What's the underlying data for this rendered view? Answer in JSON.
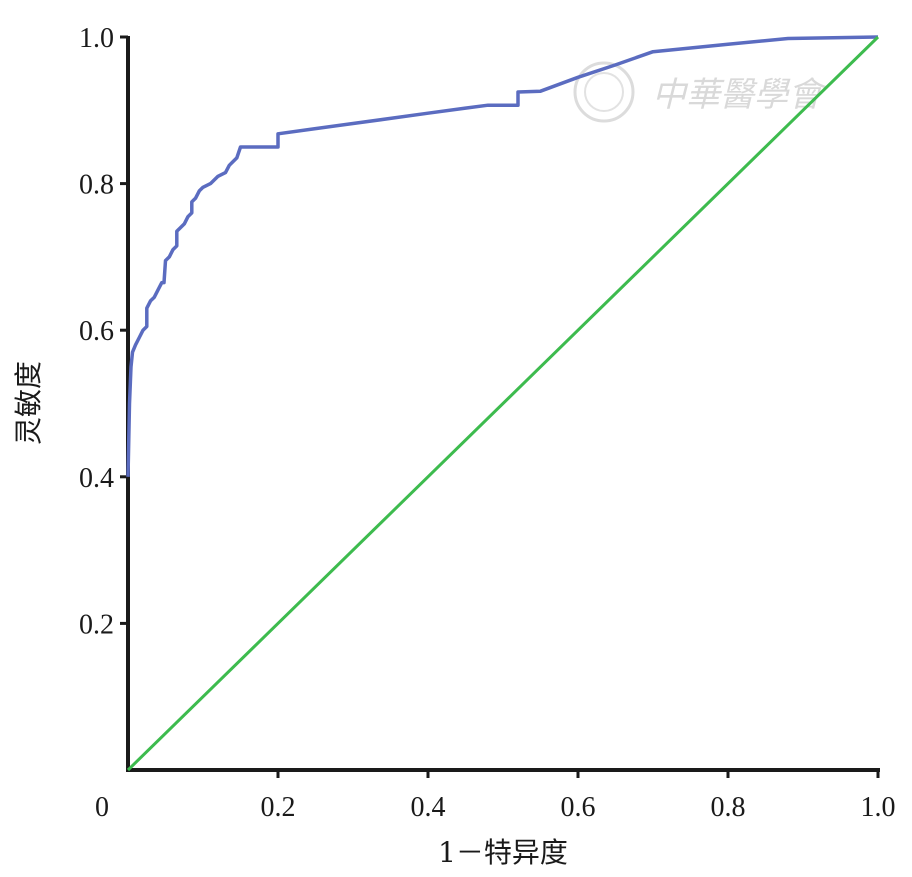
{
  "chart_data": {
    "type": "line",
    "title": "",
    "xlabel": "1－特异度",
    "ylabel": "灵敏度",
    "xlim": [
      0,
      1
    ],
    "ylim": [
      0,
      1
    ],
    "x_ticks": [
      0,
      0.2,
      0.4,
      0.6,
      0.8,
      1.0
    ],
    "x_tick_labels": [
      "0",
      "0.2",
      "0.4",
      "0.6",
      "0.8",
      "1.0"
    ],
    "y_ticks": [
      0.2,
      0.4,
      0.6,
      0.8,
      1.0
    ],
    "y_tick_labels": [
      "0.2",
      "0.4",
      "0.6",
      "0.8",
      "1.0"
    ],
    "grid": false,
    "legend": "none",
    "series": [
      {
        "color": "#5b6cc0",
        "points": [
          [
            0,
            0.4
          ],
          [
            0.002,
            0.5
          ],
          [
            0.004,
            0.55
          ],
          [
            0.006,
            0.57
          ],
          [
            0.01,
            0.58
          ],
          [
            0.015,
            0.59
          ],
          [
            0.02,
            0.6
          ],
          [
            0.025,
            0.605
          ],
          [
            0.025,
            0.63
          ],
          [
            0.03,
            0.64
          ],
          [
            0.035,
            0.645
          ],
          [
            0.04,
            0.655
          ],
          [
            0.045,
            0.665
          ],
          [
            0.048,
            0.665
          ],
          [
            0.05,
            0.695
          ],
          [
            0.055,
            0.7
          ],
          [
            0.06,
            0.71
          ],
          [
            0.065,
            0.715
          ],
          [
            0.065,
            0.735
          ],
          [
            0.07,
            0.74
          ],
          [
            0.075,
            0.745
          ],
          [
            0.08,
            0.755
          ],
          [
            0.085,
            0.76
          ],
          [
            0.085,
            0.775
          ],
          [
            0.09,
            0.78
          ],
          [
            0.095,
            0.79
          ],
          [
            0.1,
            0.795
          ],
          [
            0.11,
            0.8
          ],
          [
            0.12,
            0.81
          ],
          [
            0.13,
            0.815
          ],
          [
            0.135,
            0.825
          ],
          [
            0.14,
            0.83
          ],
          [
            0.145,
            0.835
          ],
          [
            0.15,
            0.85
          ],
          [
            0.2,
            0.85
          ],
          [
            0.2,
            0.868
          ],
          [
            0.25,
            0.875
          ],
          [
            0.3,
            0.882
          ],
          [
            0.35,
            0.889
          ],
          [
            0.4,
            0.896
          ],
          [
            0.45,
            0.903
          ],
          [
            0.48,
            0.907
          ],
          [
            0.52,
            0.907
          ],
          [
            0.52,
            0.925
          ],
          [
            0.55,
            0.926
          ],
          [
            0.6,
            0.945
          ],
          [
            0.65,
            0.962
          ],
          [
            0.7,
            0.98
          ],
          [
            0.8,
            0.99
          ],
          [
            0.88,
            0.998
          ],
          [
            1.0,
            1.0
          ]
        ]
      },
      {
        "color": "#3dbb4e",
        "points": [
          [
            0,
            0
          ],
          [
            1,
            1
          ]
        ]
      }
    ]
  },
  "watermark": {
    "text": "中華醫學會"
  }
}
